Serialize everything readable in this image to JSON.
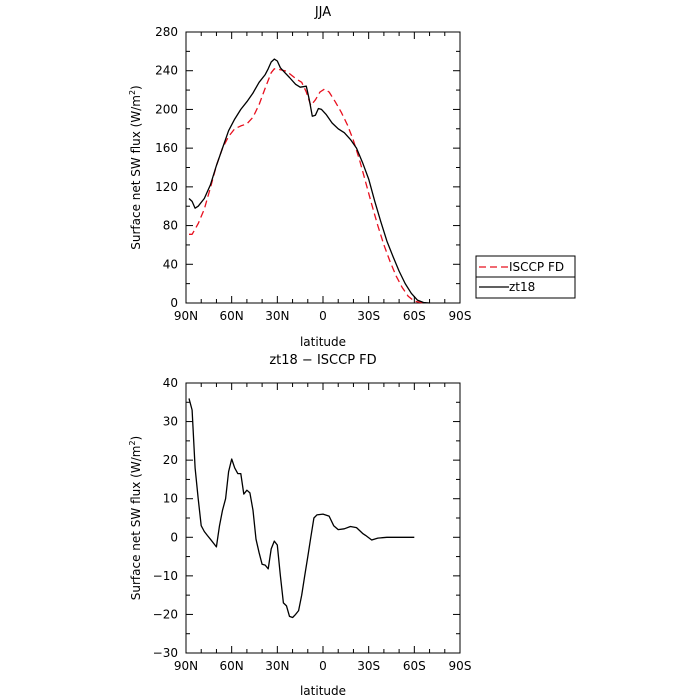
{
  "chart_data": [
    {
      "type": "line",
      "title": "JJA",
      "xlabel": "latitude",
      "ylabel": "Surface net SW flux (W/m",
      "ylabel_sup": "2",
      "ylabel_close": ")",
      "xlim": [
        90,
        -90
      ],
      "ylim": [
        0,
        280
      ],
      "x_ticks": [
        90,
        60,
        30,
        0,
        -30,
        -60,
        -90
      ],
      "x_tick_labels": [
        "90N",
        "60N",
        "30N",
        "0",
        "30S",
        "60S",
        "90S"
      ],
      "y_ticks": [
        0,
        40,
        80,
        120,
        160,
        200,
        240,
        280
      ],
      "y_tick_labels": [
        "0",
        "40",
        "80",
        "120",
        "160",
        "200",
        "240",
        "280"
      ],
      "legend_position": "right-outside",
      "series": [
        {
          "name": "ISCCP FD",
          "color": "#e8101f",
          "style": "dashed",
          "points": [
            [
              88,
              71
            ],
            [
              86,
              71
            ],
            [
              82,
              82
            ],
            [
              78,
              97
            ],
            [
              74,
              119
            ],
            [
              70,
              142
            ],
            [
              66,
              160
            ],
            [
              62,
              172
            ],
            [
              58,
              180
            ],
            [
              54,
              183
            ],
            [
              50,
              185
            ],
            [
              46,
              192
            ],
            [
              42,
              205
            ],
            [
              38,
              222
            ],
            [
              34,
              238
            ],
            [
              32,
              242
            ],
            [
              28,
              241
            ],
            [
              25,
              240
            ],
            [
              22,
              237
            ],
            [
              18,
              232
            ],
            [
              14,
              228
            ],
            [
              11,
              218
            ],
            [
              8,
              204
            ],
            [
              5,
              210
            ],
            [
              2,
              218
            ],
            [
              -1,
              221
            ],
            [
              -4,
              218
            ],
            [
              -8,
              208
            ],
            [
              -12,
              197
            ],
            [
              -16,
              184
            ],
            [
              -20,
              168
            ],
            [
              -24,
              148
            ],
            [
              -28,
              125
            ],
            [
              -32,
              102
            ],
            [
              -36,
              80
            ],
            [
              -40,
              60
            ],
            [
              -44,
              43
            ],
            [
              -48,
              28
            ],
            [
              -52,
              16
            ],
            [
              -56,
              7
            ],
            [
              -60,
              2
            ],
            [
              -64,
              0.5
            ],
            [
              -68,
              0
            ]
          ]
        },
        {
          "name": "zt18",
          "color": "#000000",
          "style": "solid",
          "points": [
            [
              88,
              108
            ],
            [
              86,
              105
            ],
            [
              84,
              98
            ],
            [
              82,
              100
            ],
            [
              78,
              108
            ],
            [
              74,
              122
            ],
            [
              70,
              142
            ],
            [
              66,
              160
            ],
            [
              62,
              178
            ],
            [
              58,
              190
            ],
            [
              54,
              200
            ],
            [
              50,
              208
            ],
            [
              46,
              217
            ],
            [
              42,
              228
            ],
            [
              38,
              236
            ],
            [
              36,
              242
            ],
            [
              34,
              249
            ],
            [
              32,
              252
            ],
            [
              30,
              250
            ],
            [
              28,
              243
            ],
            [
              25,
              238
            ],
            [
              22,
              233
            ],
            [
              18,
              226
            ],
            [
              15,
              223
            ],
            [
              11,
              224
            ],
            [
              9,
              210
            ],
            [
              7,
              193
            ],
            [
              5,
              194
            ],
            [
              3,
              201
            ],
            [
              1,
              200
            ],
            [
              -2,
              195
            ],
            [
              -6,
              186
            ],
            [
              -10,
              180
            ],
            [
              -14,
              176
            ],
            [
              -18,
              169
            ],
            [
              -22,
              160
            ],
            [
              -26,
              145
            ],
            [
              -30,
              128
            ],
            [
              -34,
              105
            ],
            [
              -38,
              84
            ],
            [
              -42,
              64
            ],
            [
              -46,
              48
            ],
            [
              -50,
              33
            ],
            [
              -54,
              20
            ],
            [
              -58,
              10
            ],
            [
              -62,
              3
            ],
            [
              -66,
              0.5
            ],
            [
              -70,
              0
            ]
          ]
        }
      ]
    },
    {
      "type": "line",
      "title": "zt18 − ISCCP FD",
      "xlabel": "latitude",
      "ylabel": "Surface net SW flux (W/m",
      "ylabel_sup": "2",
      "ylabel_close": ")",
      "xlim": [
        90,
        -90
      ],
      "ylim": [
        -30,
        40
      ],
      "x_ticks": [
        90,
        60,
        30,
        0,
        -30,
        -60,
        -90
      ],
      "x_tick_labels": [
        "90N",
        "60N",
        "30N",
        "0",
        "30S",
        "60S",
        "90S"
      ],
      "y_ticks": [
        -30,
        -20,
        -10,
        0,
        10,
        20,
        30,
        40
      ],
      "y_tick_labels": [
        "−30",
        "−20",
        "−10",
        "0",
        "10",
        "20",
        "30",
        "40"
      ],
      "series": [
        {
          "color": "#000000",
          "style": "solid",
          "points": [
            [
              88,
              36
            ],
            [
              86,
              33
            ],
            [
              84,
              18
            ],
            [
              82,
              10
            ],
            [
              80,
              3
            ],
            [
              78,
              1.5
            ],
            [
              76,
              0.5
            ],
            [
              74,
              -0.5
            ],
            [
              70,
              -2.5
            ],
            [
              68,
              3
            ],
            [
              66,
              7
            ],
            [
              64,
              10
            ],
            [
              62,
              17
            ],
            [
              60,
              20.3
            ],
            [
              58,
              18
            ],
            [
              56,
              16.5
            ],
            [
              54,
              16.5
            ],
            [
              52,
              11.2
            ],
            [
              50,
              12.2
            ],
            [
              48,
              11.5
            ],
            [
              46,
              7
            ],
            [
              44,
              -0.5
            ],
            [
              42,
              -4
            ],
            [
              40,
              -7
            ],
            [
              38,
              -7.2
            ],
            [
              36,
              -8.2
            ],
            [
              34,
              -3
            ],
            [
              32,
              -1
            ],
            [
              30,
              -2
            ],
            [
              28,
              -10
            ],
            [
              26,
              -17
            ],
            [
              24,
              -17.8
            ],
            [
              22,
              -20.5
            ],
            [
              20,
              -20.8
            ],
            [
              18,
              -20
            ],
            [
              16,
              -19
            ],
            [
              14,
              -15
            ],
            [
              12,
              -10
            ],
            [
              10,
              -5
            ],
            [
              8,
              0
            ],
            [
              6,
              5
            ],
            [
              4,
              5.8
            ],
            [
              0,
              6
            ],
            [
              -4,
              5.5
            ],
            [
              -7,
              3
            ],
            [
              -10,
              2
            ],
            [
              -14,
              2.2
            ],
            [
              -18,
              2.8
            ],
            [
              -22,
              2.5
            ],
            [
              -26,
              1
            ],
            [
              -28,
              0.5
            ],
            [
              -32,
              -0.7
            ],
            [
              -36,
              -0.2
            ],
            [
              -42,
              0
            ],
            [
              -50,
              0
            ],
            [
              -60,
              0
            ]
          ]
        }
      ]
    }
  ]
}
